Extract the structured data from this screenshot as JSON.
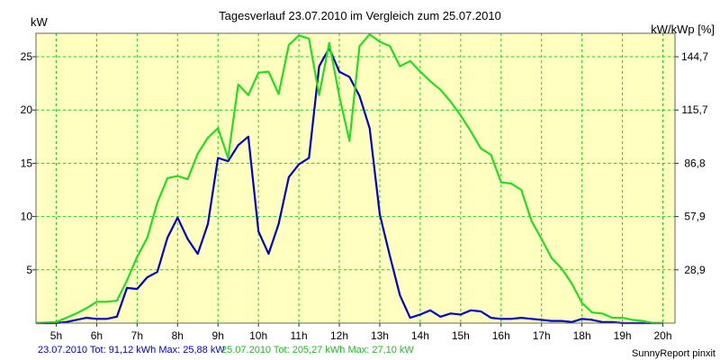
{
  "chart_data": {
    "type": "line",
    "title": "Tagesverlauf 23.07.2010 im Vergleich zum 25.07.2010",
    "ylabel_left": "kW",
    "ylabel_right": "kW/kWp [%]",
    "x_ticks": [
      "5h",
      "6h",
      "7h",
      "8h",
      "9h",
      "10h",
      "11h",
      "12h",
      "13h",
      "14h",
      "15h",
      "16h",
      "17h",
      "18h",
      "19h",
      "20h"
    ],
    "x_tick_values": [
      5,
      6,
      7,
      8,
      9,
      10,
      11,
      12,
      13,
      14,
      15,
      16,
      17,
      18,
      19,
      20
    ],
    "xlim": [
      4.5,
      20.3
    ],
    "y_ticks_left": [
      "5",
      "10",
      "15",
      "20",
      "25"
    ],
    "y_tick_values_left": [
      5,
      10,
      15,
      20,
      25
    ],
    "y_ticks_right": [
      "28,9",
      "57,9",
      "86,8",
      "115,7",
      "144,7"
    ],
    "ylim": [
      0,
      27.2
    ],
    "grid": true,
    "background": "#ffffc0",
    "series": [
      {
        "name": "23.07.2010",
        "color": "#0000cc",
        "x": [
          4.5,
          5.0,
          5.25,
          5.5,
          5.75,
          6.0,
          6.25,
          6.5,
          6.75,
          7.0,
          7.25,
          7.5,
          7.75,
          8.0,
          8.25,
          8.5,
          8.75,
          9.0,
          9.25,
          9.5,
          9.75,
          10.0,
          10.25,
          10.5,
          10.75,
          11.0,
          11.25,
          11.5,
          11.75,
          12.0,
          12.25,
          12.5,
          12.75,
          13.0,
          13.25,
          13.5,
          13.75,
          14.0,
          14.25,
          14.5,
          14.75,
          15.0,
          15.25,
          15.5,
          15.75,
          16.0,
          16.25,
          16.5,
          16.75,
          17.0,
          17.25,
          17.5,
          17.75,
          18.0,
          18.25,
          18.5,
          18.75,
          19.0,
          19.25,
          19.5,
          19.75,
          20.0
        ],
        "y": [
          0,
          0,
          0.1,
          0.3,
          0.5,
          0.4,
          0.4,
          0.6,
          3.3,
          3.2,
          4.3,
          4.8,
          8.0,
          9.9,
          7.9,
          6.5,
          9.3,
          15.5,
          15.2,
          16.7,
          17.5,
          8.6,
          6.5,
          9.3,
          13.7,
          14.9,
          15.5,
          24.1,
          25.8,
          23.6,
          23.1,
          21.3,
          18.3,
          10.2,
          6.3,
          2.6,
          0.5,
          0.8,
          1.2,
          0.6,
          0.9,
          0.8,
          1.2,
          1.1,
          0.5,
          0.4,
          0.4,
          0.5,
          0.4,
          0.3,
          0.2,
          0.2,
          0.1,
          0.4,
          0.3,
          0.1,
          0.1,
          0.0,
          0.0,
          0.0,
          0.0,
          0.0
        ]
      },
      {
        "name": "25.07.2010",
        "color": "#22dd22",
        "x": [
          4.5,
          5.0,
          5.25,
          5.5,
          5.75,
          6.0,
          6.25,
          6.5,
          6.75,
          7.0,
          7.25,
          7.5,
          7.75,
          8.0,
          8.25,
          8.5,
          8.75,
          9.0,
          9.25,
          9.5,
          9.75,
          10.0,
          10.25,
          10.5,
          10.75,
          11.0,
          11.25,
          11.5,
          11.75,
          12.0,
          12.25,
          12.5,
          12.75,
          13.0,
          13.25,
          13.5,
          13.75,
          14.0,
          14.25,
          14.5,
          14.75,
          15.0,
          15.25,
          15.5,
          15.75,
          16.0,
          16.25,
          16.5,
          16.75,
          17.0,
          17.25,
          17.5,
          17.75,
          18.0,
          18.25,
          18.5,
          18.75,
          19.0,
          19.25,
          19.5,
          19.75,
          20.0
        ],
        "y": [
          0,
          0.1,
          0.5,
          0.9,
          1.4,
          2.0,
          2.0,
          2.1,
          4.0,
          6.2,
          8.0,
          11.3,
          13.6,
          13.8,
          13.5,
          15.9,
          17.4,
          18.3,
          15.5,
          22.4,
          21.4,
          23.5,
          23.6,
          21.5,
          26.1,
          27.0,
          26.7,
          21.4,
          26.3,
          21.3,
          17.1,
          26.0,
          27.1,
          26.4,
          26.0,
          24.1,
          24.6,
          23.6,
          22.7,
          21.9,
          20.8,
          19.5,
          18.0,
          16.4,
          15.8,
          13.2,
          13.1,
          12.5,
          9.6,
          7.9,
          6.1,
          5.1,
          3.7,
          1.9,
          1.0,
          0.9,
          0.5,
          0.5,
          0.3,
          0.2,
          0.0,
          0.0
        ]
      }
    ]
  },
  "footer": {
    "series1_text": "23.07.2010 Tot: 91,12 kWh Max: 25,88 kW",
    "series2_text": "25.07.2010 Tot: 205,27 kWh Max: 27,10 kW",
    "source_text": "SunnyReport pinxit"
  }
}
